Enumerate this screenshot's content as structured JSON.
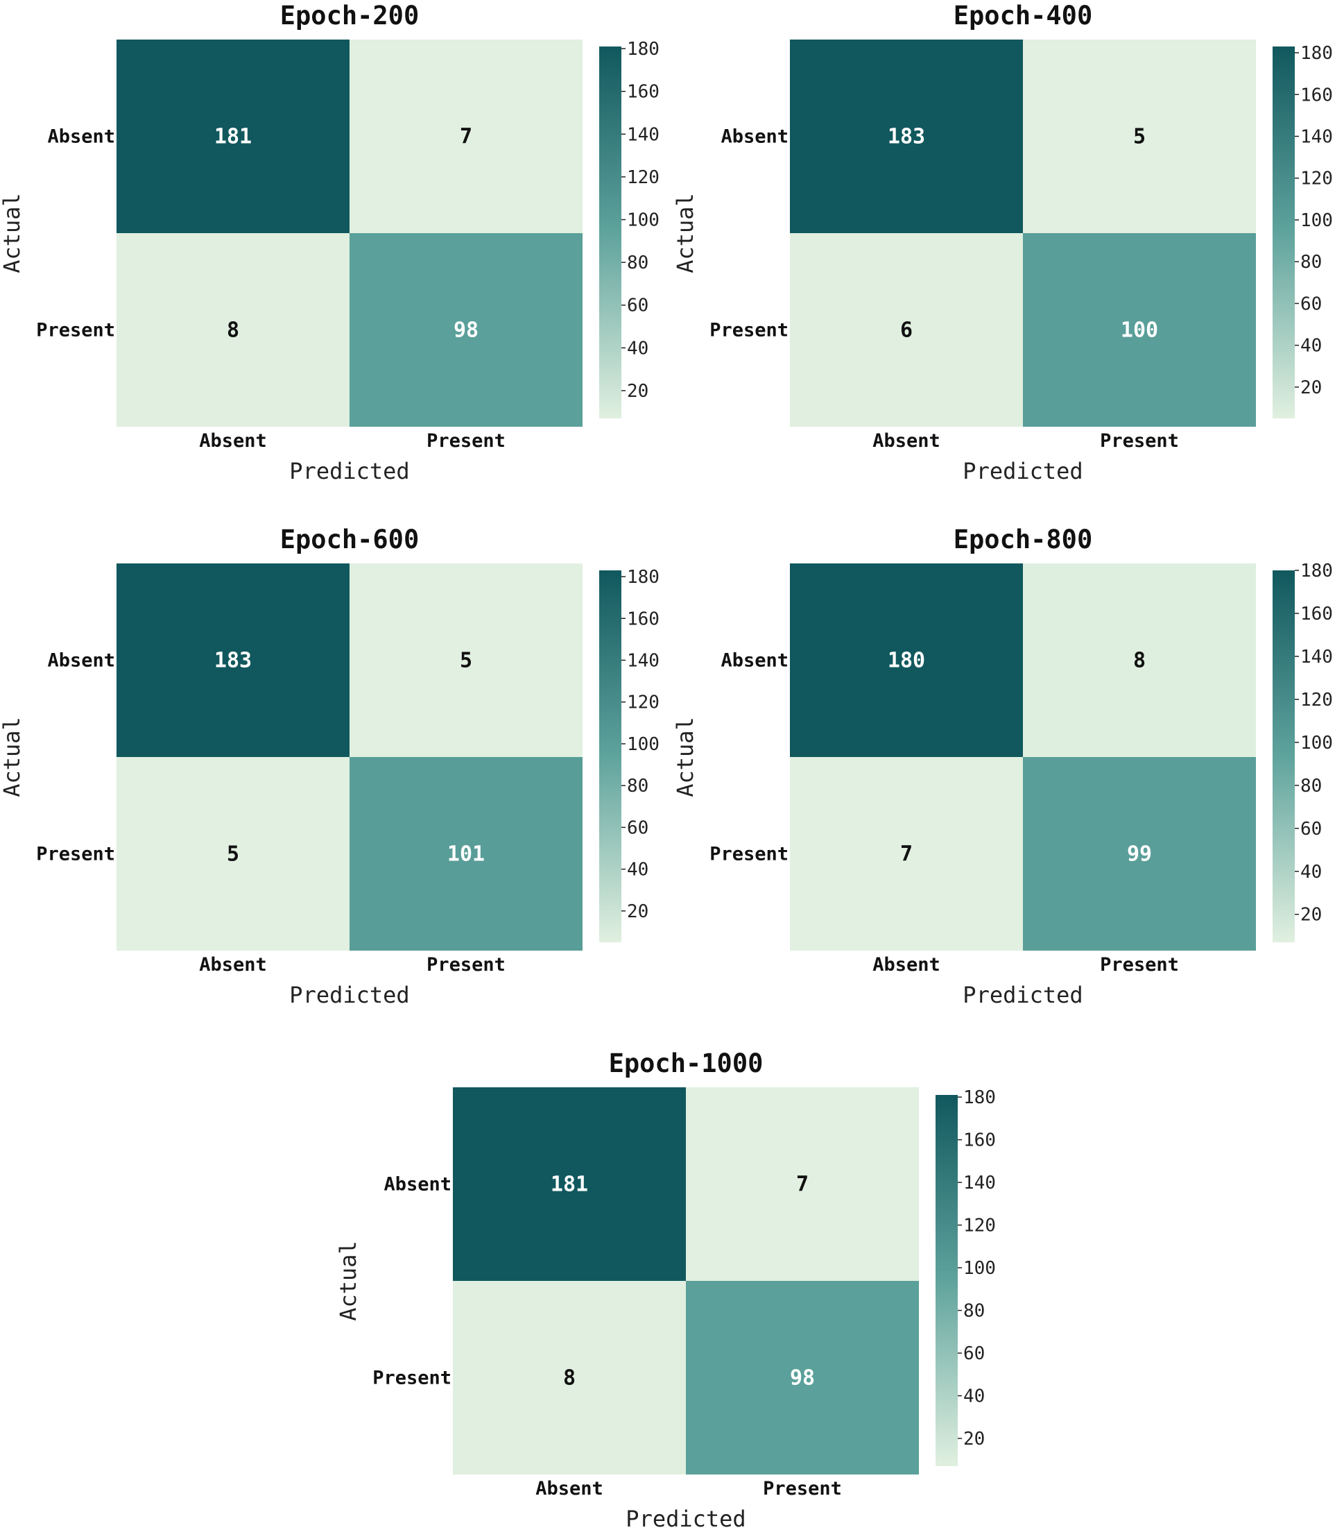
{
  "chart_data": [
    {
      "type": "heatmap",
      "title": "Epoch-200",
      "xlabel": "Predicted",
      "ylabel": "Actual",
      "x_categories": [
        "Absent",
        "Present"
      ],
      "y_categories": [
        "Absent",
        "Present"
      ],
      "matrix": [
        [
          181,
          7
        ],
        [
          8,
          98
        ]
      ],
      "colorbar": {
        "range": [
          7,
          181
        ],
        "ticks": [
          "20",
          "40",
          "60",
          "80",
          "100",
          "120",
          "140",
          "160",
          "180"
        ]
      }
    },
    {
      "type": "heatmap",
      "title": "Epoch-400",
      "xlabel": "Predicted",
      "ylabel": "Actual",
      "x_categories": [
        "Absent",
        "Present"
      ],
      "y_categories": [
        "Absent",
        "Present"
      ],
      "matrix": [
        [
          183,
          5
        ],
        [
          6,
          100
        ]
      ],
      "colorbar": {
        "range": [
          5,
          183
        ],
        "ticks": [
          "20",
          "40",
          "60",
          "80",
          "100",
          "120",
          "140",
          "160",
          "180"
        ]
      }
    },
    {
      "type": "heatmap",
      "title": "Epoch-600",
      "xlabel": "Predicted",
      "ylabel": "Actual",
      "x_categories": [
        "Absent",
        "Present"
      ],
      "y_categories": [
        "Absent",
        "Present"
      ],
      "matrix": [
        [
          183,
          5
        ],
        [
          5,
          101
        ]
      ],
      "colorbar": {
        "range": [
          5,
          183
        ],
        "ticks": [
          "20",
          "40",
          "60",
          "80",
          "100",
          "120",
          "140",
          "160",
          "180"
        ]
      }
    },
    {
      "type": "heatmap",
      "title": "Epoch-800",
      "xlabel": "Predicted",
      "ylabel": "Actual",
      "x_categories": [
        "Absent",
        "Present"
      ],
      "y_categories": [
        "Absent",
        "Present"
      ],
      "matrix": [
        [
          180,
          8
        ],
        [
          7,
          99
        ]
      ],
      "colorbar": {
        "range": [
          7,
          180
        ],
        "ticks": [
          "20",
          "40",
          "60",
          "80",
          "100",
          "120",
          "140",
          "160",
          "180"
        ]
      }
    },
    {
      "type": "heatmap",
      "title": "Epoch-1000",
      "xlabel": "Predicted",
      "ylabel": "Actual",
      "x_categories": [
        "Absent",
        "Present"
      ],
      "y_categories": [
        "Absent",
        "Present"
      ],
      "matrix": [
        [
          181,
          7
        ],
        [
          8,
          98
        ]
      ],
      "colorbar": {
        "range": [
          7,
          181
        ],
        "ticks": [
          "20",
          "40",
          "60",
          "80",
          "100",
          "120",
          "140",
          "160",
          "180"
        ]
      }
    }
  ],
  "colors": {
    "high": "#11585e",
    "mid": "#5fa39d",
    "low": "#e1f0e0",
    "dark_text": "#111111",
    "light_text": "#ffffff"
  }
}
